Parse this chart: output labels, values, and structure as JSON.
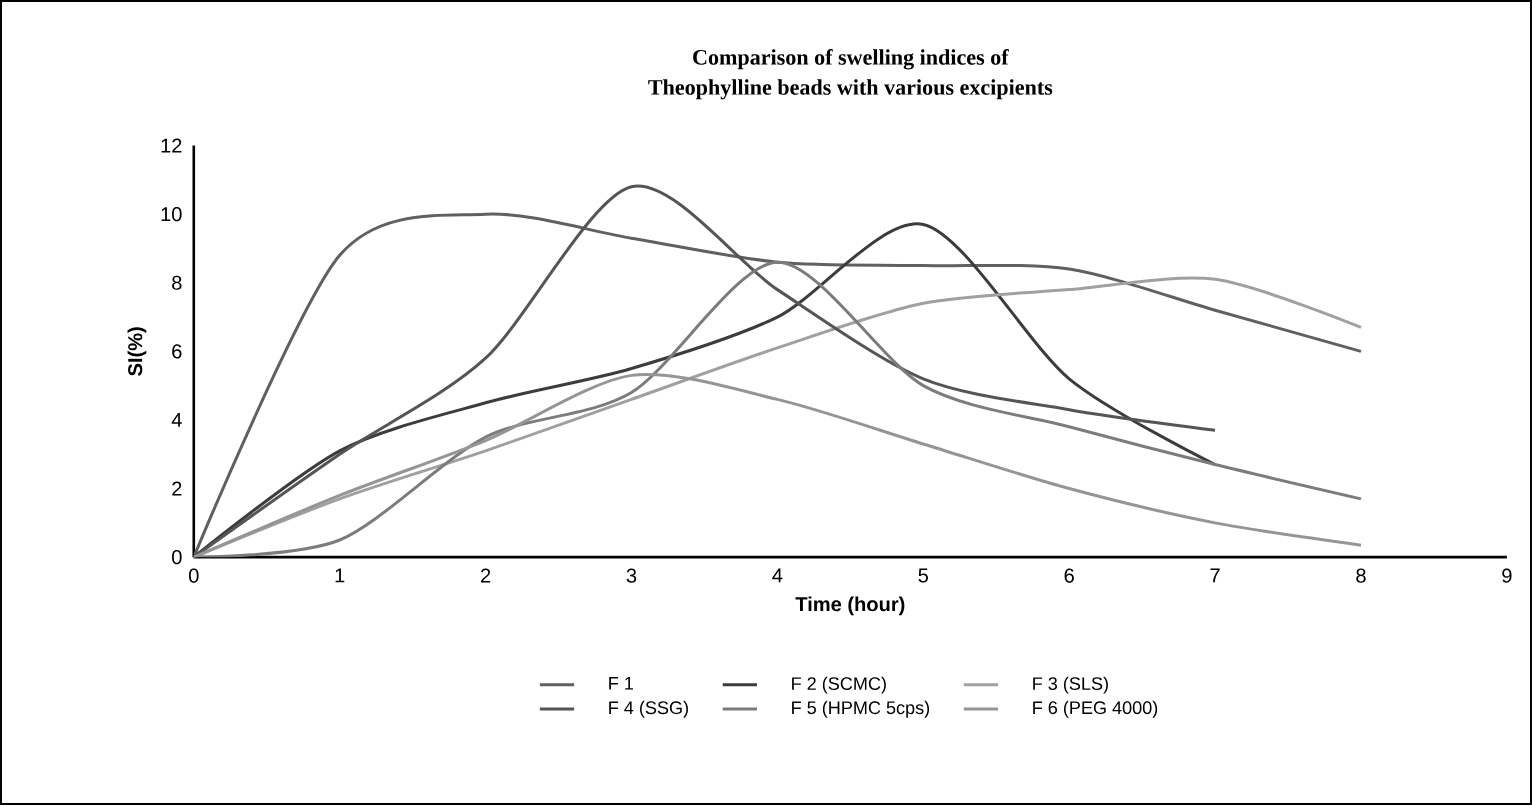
{
  "chart_data": {
    "type": "line",
    "title": "Comparison of swelling indices of",
    "subtitle": "Theophylline beads with various excipients",
    "xlabel": "Time (hour)",
    "ylabel": "SI(%)",
    "xlim": [
      0,
      9
    ],
    "ylim": [
      0,
      12
    ],
    "xticks": [
      0,
      1,
      2,
      3,
      4,
      5,
      6,
      7,
      8,
      9
    ],
    "yticks": [
      0,
      2,
      4,
      6,
      8,
      10,
      12
    ],
    "grid": false,
    "legend": "bottom",
    "marker": "none",
    "line_style": "solid",
    "series": [
      {
        "name": "F 1",
        "color": "#606060",
        "x": [
          0,
          1,
          2,
          3,
          4,
          5,
          6,
          7,
          8
        ],
        "values": [
          0,
          8.8,
          10,
          9.3,
          8.6,
          8.5,
          8.4,
          7.2,
          6
        ]
      },
      {
        "name": "F 2 (SCMC)",
        "color": "#3c3c3c",
        "x": [
          0,
          1,
          2,
          3,
          4,
          5,
          6,
          7
        ],
        "values": [
          0,
          3.1,
          4.5,
          5.5,
          7,
          9.7,
          5.2,
          2.7
        ]
      },
      {
        "name": "F 3 (SLS)",
        "color": "#a0a0a0",
        "x": [
          0,
          1,
          2,
          3,
          4,
          5,
          6,
          7,
          8
        ],
        "values": [
          0,
          1.7,
          3.1,
          4.6,
          6.1,
          7.4,
          7.8,
          8.1,
          6.7
        ]
      },
      {
        "name": "F 4 (SSG)",
        "color": "#555555",
        "x": [
          0,
          1,
          2,
          3,
          4,
          5,
          6,
          7
        ],
        "values": [
          0,
          3,
          5.8,
          10.8,
          7.8,
          5.2,
          4.3,
          3.7
        ]
      },
      {
        "name": "F 5 (HPMC 5cps)",
        "color": "#7c7c7c",
        "x": [
          0,
          1,
          2,
          3,
          4,
          5,
          6,
          7,
          8
        ],
        "values": [
          0,
          0.5,
          3.5,
          4.8,
          8.6,
          5,
          3.8,
          2.7,
          1.7
        ]
      },
      {
        "name": "F 6 (PEG 4000)",
        "color": "#959595",
        "x": [
          0,
          1,
          2,
          3,
          4,
          5,
          6,
          7,
          8
        ],
        "values": [
          0,
          1.8,
          3.4,
          5.3,
          4.6,
          3.3,
          2,
          1,
          0.35
        ]
      }
    ]
  }
}
